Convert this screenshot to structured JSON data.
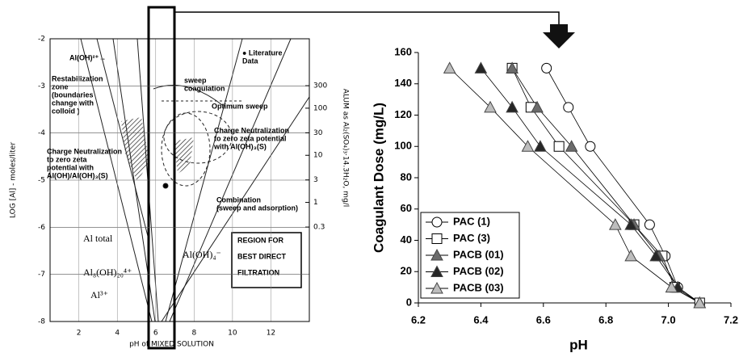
{
  "chart_data": [
    {
      "type": "diagram",
      "xlabel": "pH of MIXED SOLUTION",
      "ylabel": "LOG [Al] - moles/liter",
      "y2label": "ALUM as Al₂(SO₄)₃·14.3H₂O, mg/l",
      "xlim": [
        0.5,
        14
      ],
      "ylim": [
        -8,
        -2
      ],
      "xticks": [
        2,
        4,
        6,
        8,
        10,
        12
      ],
      "yticks": [
        -2,
        -3,
        -4,
        -5,
        -6,
        -7,
        -8
      ],
      "y2lim": [
        0.00297,
        2970
      ],
      "y2log": true,
      "y2ticks": [
        300,
        100,
        30,
        10,
        3,
        1,
        0.3
      ],
      "grid": true,
      "annotations": [
        [
          "Al(OH)²⁺→"
        ],
        [
          "sweep",
          "coagulation"
        ],
        [
          "● Literature",
          "Data"
        ],
        [
          "Restabilization",
          "zone",
          "(boundaries",
          "change with",
          "colloid )"
        ],
        [
          "Optimum sweep"
        ],
        [
          "Charge Neutralization",
          "to zero zeta potential",
          "with Al(OH)₃(S)"
        ],
        [
          "Charge Neutralization",
          "to zero zeta",
          "potential with",
          "Al(OH)/Al(OH)₃(S)"
        ],
        [
          "Combination",
          "(sweep and adsorption)"
        ],
        [
          "Al total"
        ],
        [
          "Al₈(OH)₂₀⁴⁺"
        ],
        [
          "Al³⁺"
        ],
        [
          "Al(OH)₄⁻"
        ],
        [
          "REGION FOR",
          "BEST DIRECT",
          "FILTRATION"
        ]
      ]
    },
    {
      "type": "line",
      "ylabel": "Coagulant Dose (mg/L)",
      "xlabel": "pH",
      "xlim": [
        6.2,
        7.2
      ],
      "ylim": [
        0,
        160
      ],
      "xticks": [
        6.2,
        6.4,
        6.6,
        6.8,
        {
          "value": 7,
          "label": "7.0"
        },
        7.2
      ],
      "yticks": [
        0,
        20,
        40,
        60,
        80,
        100,
        120,
        140,
        160
      ],
      "legend": "lower left",
      "series": [
        {
          "name": "PAC (1)",
          "marker": "circle",
          "color": "#ffffff",
          "x": [
            6.61,
            6.68,
            6.75,
            6.94,
            6.99,
            7.03,
            7.1
          ],
          "values": [
            150,
            125,
            100,
            50,
            30,
            10,
            0
          ]
        },
        {
          "name": "PAC (3)",
          "marker": "square",
          "color": "#ffffff",
          "x": [
            6.5,
            6.56,
            6.65,
            6.89,
            6.98,
            7.02,
            7.1
          ],
          "values": [
            150,
            125,
            100,
            50,
            30,
            10,
            0
          ]
        },
        {
          "name": "PACB (01)",
          "marker": "triangle",
          "color": "#6b6b6b",
          "x": [
            6.5,
            6.58,
            6.69,
            6.89,
            6.97,
            7.03,
            7.1
          ],
          "values": [
            150,
            125,
            100,
            50,
            30,
            10,
            0
          ]
        },
        {
          "name": "PACB (02)",
          "marker": "triangle",
          "color": "#262626",
          "x": [
            6.4,
            6.5,
            6.59,
            6.88,
            6.96,
            7.03,
            7.1
          ],
          "values": [
            150,
            125,
            100,
            50,
            30,
            10,
            0
          ]
        },
        {
          "name": "PACB (03)",
          "marker": "triangle",
          "color": "#bdbdbd",
          "x": [
            6.3,
            6.43,
            6.55,
            6.83,
            6.88,
            7.01,
            7.1
          ],
          "values": [
            150,
            125,
            100,
            50,
            30,
            10,
            0
          ]
        }
      ]
    }
  ]
}
